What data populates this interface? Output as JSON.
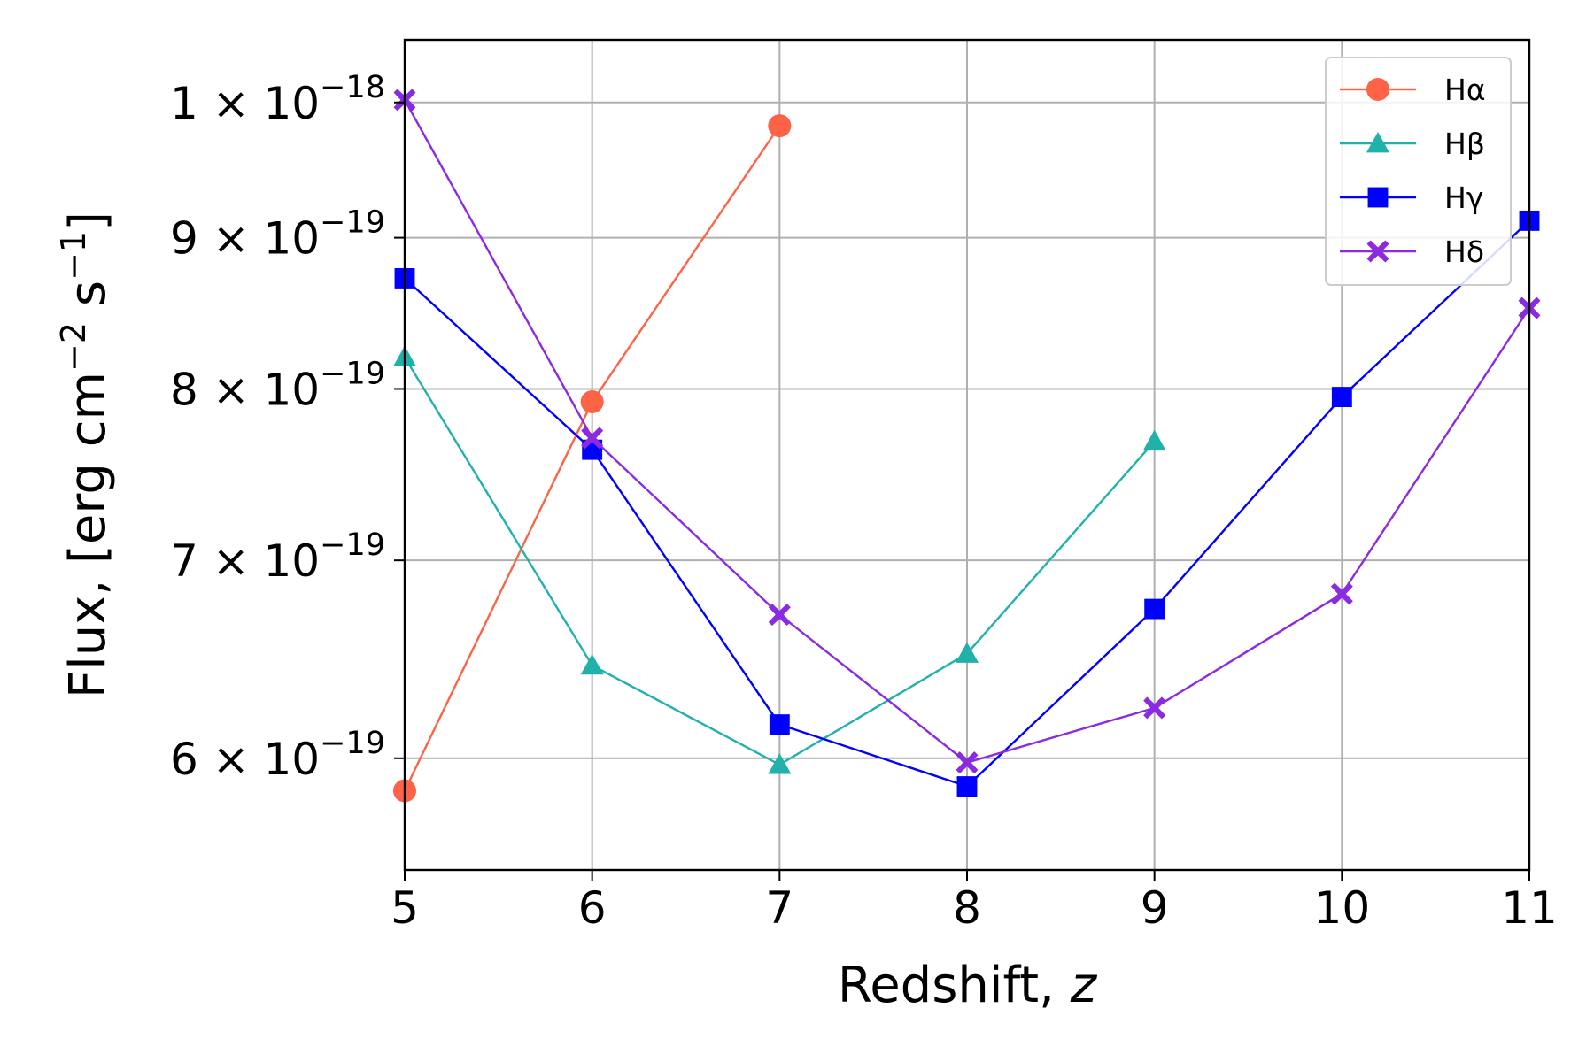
{
  "chart_data": {
    "type": "line",
    "xlabel": {
      "prefix": "Redshift, ",
      "var": "z"
    },
    "ylabel": {
      "main": "Flux, [erg cm",
      "exp1": "−2",
      "mid": " s",
      "exp2": "−1",
      "end": "]"
    },
    "xlim": [
      5,
      11
    ],
    "ylim": [
      5.5e-19,
      1.05e-18
    ],
    "y_scale": "log",
    "grid": true,
    "legend_position": "top-right",
    "x_ticks": [
      "5",
      "6",
      "7",
      "8",
      "9",
      "10",
      "11"
    ],
    "x_tick_values": [
      5,
      6,
      7,
      8,
      9,
      10,
      11
    ],
    "y_ticks": [
      {
        "value": 6e-19,
        "mantissa": "6 × 10",
        "exp": "−19"
      },
      {
        "value": 7e-19,
        "mantissa": "7 × 10",
        "exp": "−19"
      },
      {
        "value": 8e-19,
        "mantissa": "8 × 10",
        "exp": "−19"
      },
      {
        "value": 9e-19,
        "mantissa": "9 × 10",
        "exp": "−19"
      },
      {
        "value": 1e-18,
        "mantissa": "1 × 10",
        "exp": "−18"
      }
    ],
    "series": [
      {
        "name": "Hα",
        "color": "#FF6347",
        "marker": "circle",
        "x": [
          5,
          6,
          7
        ],
        "y": [
          5.85e-19,
          7.92e-19,
          9.82e-19
        ]
      },
      {
        "name": "Hβ",
        "color": "#20B2AA",
        "marker": "triangle",
        "x": [
          5,
          6,
          7,
          8,
          9
        ],
        "y": [
          8.2e-19,
          6.45e-19,
          5.97e-19,
          6.51e-19,
          7.68e-19
        ]
      },
      {
        "name": "Hγ",
        "color": "#0000FF",
        "marker": "square",
        "x": [
          5,
          6,
          7,
          8,
          9,
          10,
          11
        ],
        "y": [
          8.72e-19,
          7.63e-19,
          6.16e-19,
          5.87e-19,
          6.74e-19,
          7.95e-19,
          9.12e-19
        ]
      },
      {
        "name": "Hδ",
        "color": "#8A2BE2",
        "marker": "x-filled",
        "x": [
          5,
          6,
          7,
          8,
          9,
          10,
          11
        ],
        "y": [
          1.002e-18,
          7.7e-19,
          6.71e-19,
          5.98e-19,
          6.24e-19,
          6.82e-19,
          8.52e-19
        ]
      }
    ]
  }
}
